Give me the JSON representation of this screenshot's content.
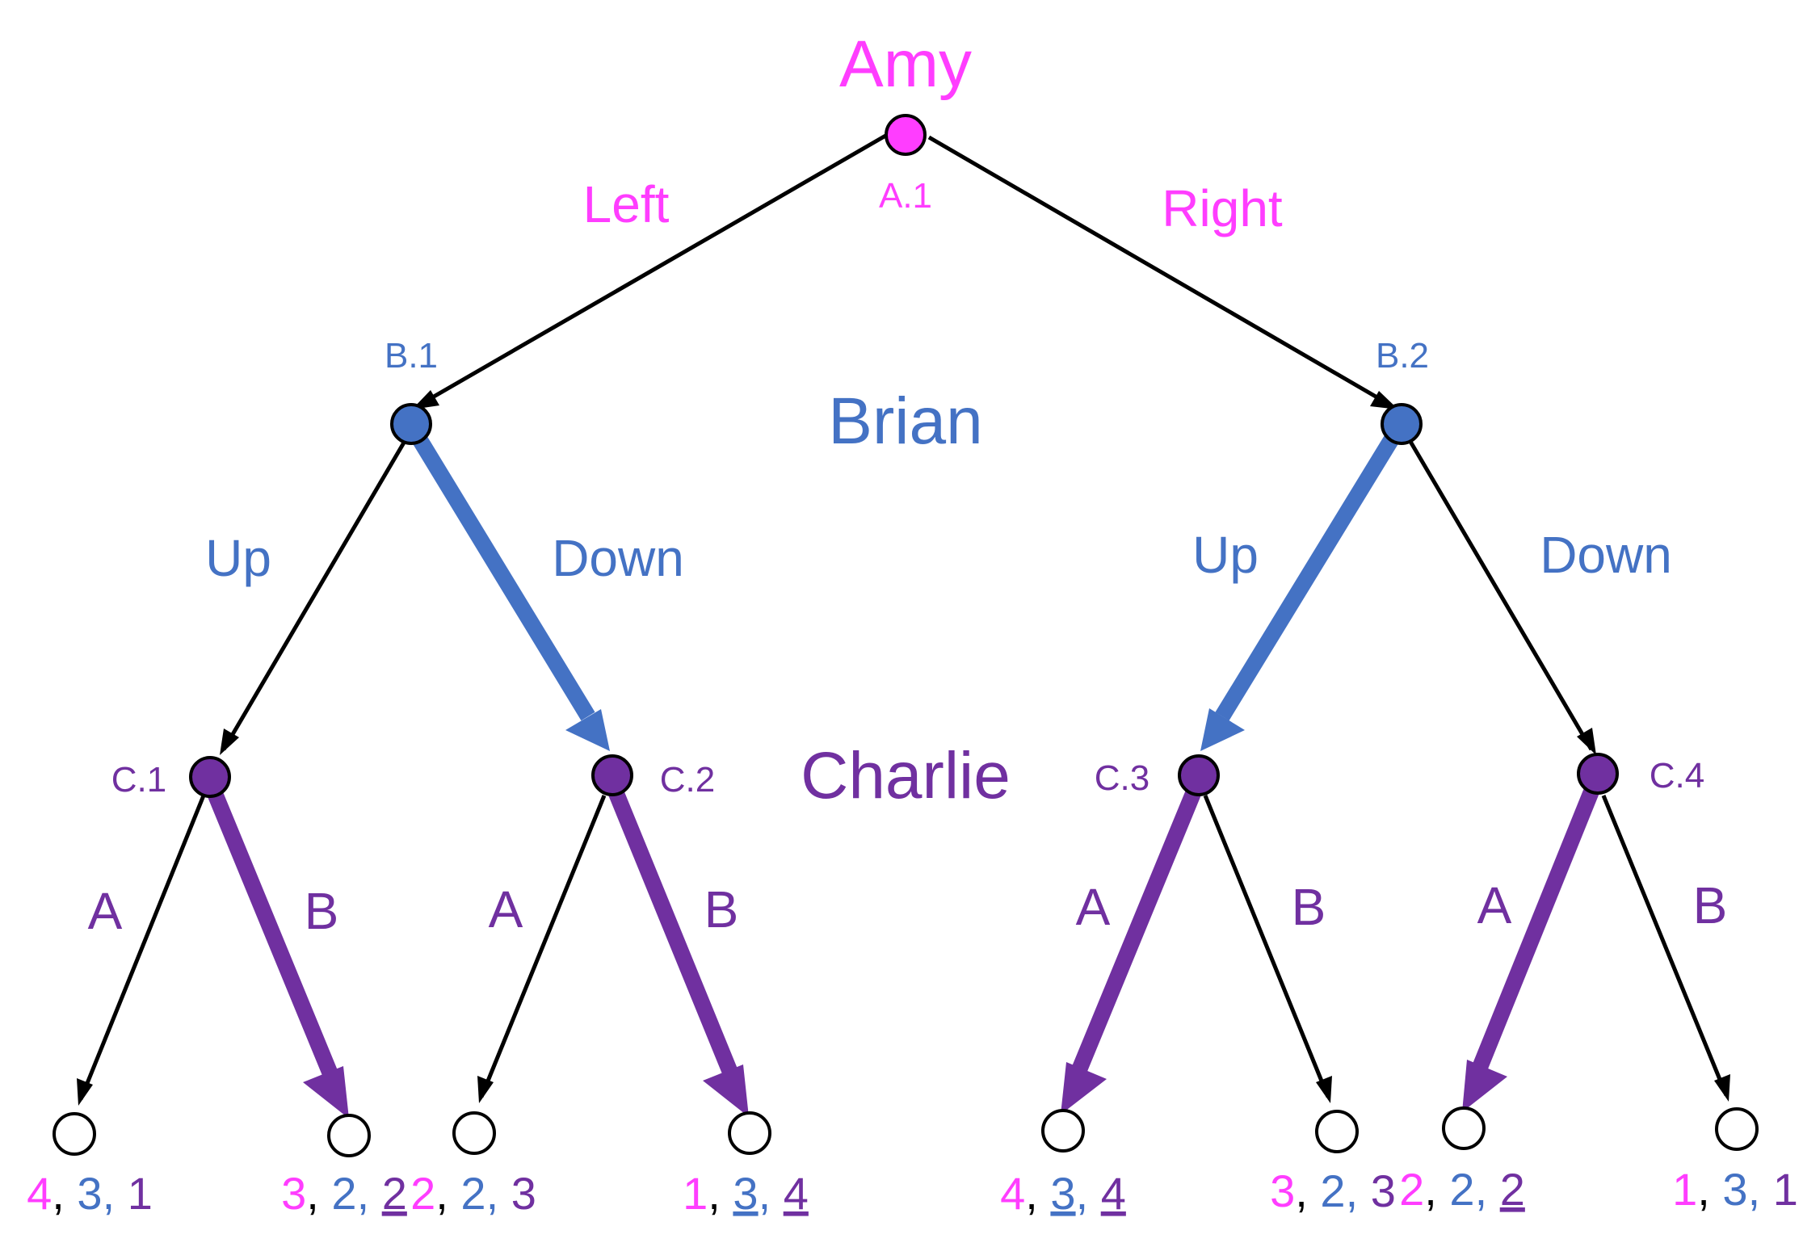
{
  "colors": {
    "amy": "#ff3dff",
    "brian": "#4472c4",
    "charlie": "#7030a0",
    "black": "#000000"
  },
  "players": {
    "amy": "Amy",
    "brian": "Brian",
    "charlie": "Charlie"
  },
  "nodes": {
    "a1": "A.1",
    "b1": "B.1",
    "b2": "B.2",
    "c1": "C.1",
    "c2": "C.2",
    "c3": "C.3",
    "c4": "C.4"
  },
  "moves": {
    "left": "Left",
    "right": "Right",
    "b1_up": "Up",
    "b1_down": "Down",
    "b2_up": "Up",
    "b2_down": "Down",
    "c1_a": "A",
    "c1_b": "B",
    "c2_a": "A",
    "c2_b": "B",
    "c3_a": "A",
    "c3_b": "B",
    "c4_a": "A",
    "c4_b": "B"
  },
  "payoffs": [
    {
      "amy": "4",
      "brian": "3",
      "charlie": "1",
      "underline": []
    },
    {
      "amy": "3",
      "brian": "2",
      "charlie": "2",
      "underline": [
        "charlie"
      ]
    },
    {
      "amy": "2",
      "brian": "2",
      "charlie": "3",
      "underline": []
    },
    {
      "amy": "1",
      "brian": "3",
      "charlie": "4",
      "underline": [
        "brian",
        "charlie"
      ]
    },
    {
      "amy": "4",
      "brian": "3",
      "charlie": "4",
      "underline": [
        "brian",
        "charlie"
      ]
    },
    {
      "amy": "3",
      "brian": "2",
      "charlie": "3",
      "underline": []
    },
    {
      "amy": "2",
      "brian": "2",
      "charlie": "2",
      "underline": [
        "charlie"
      ]
    },
    {
      "amy": "1",
      "brian": "3",
      "charlie": "1",
      "underline": []
    }
  ]
}
